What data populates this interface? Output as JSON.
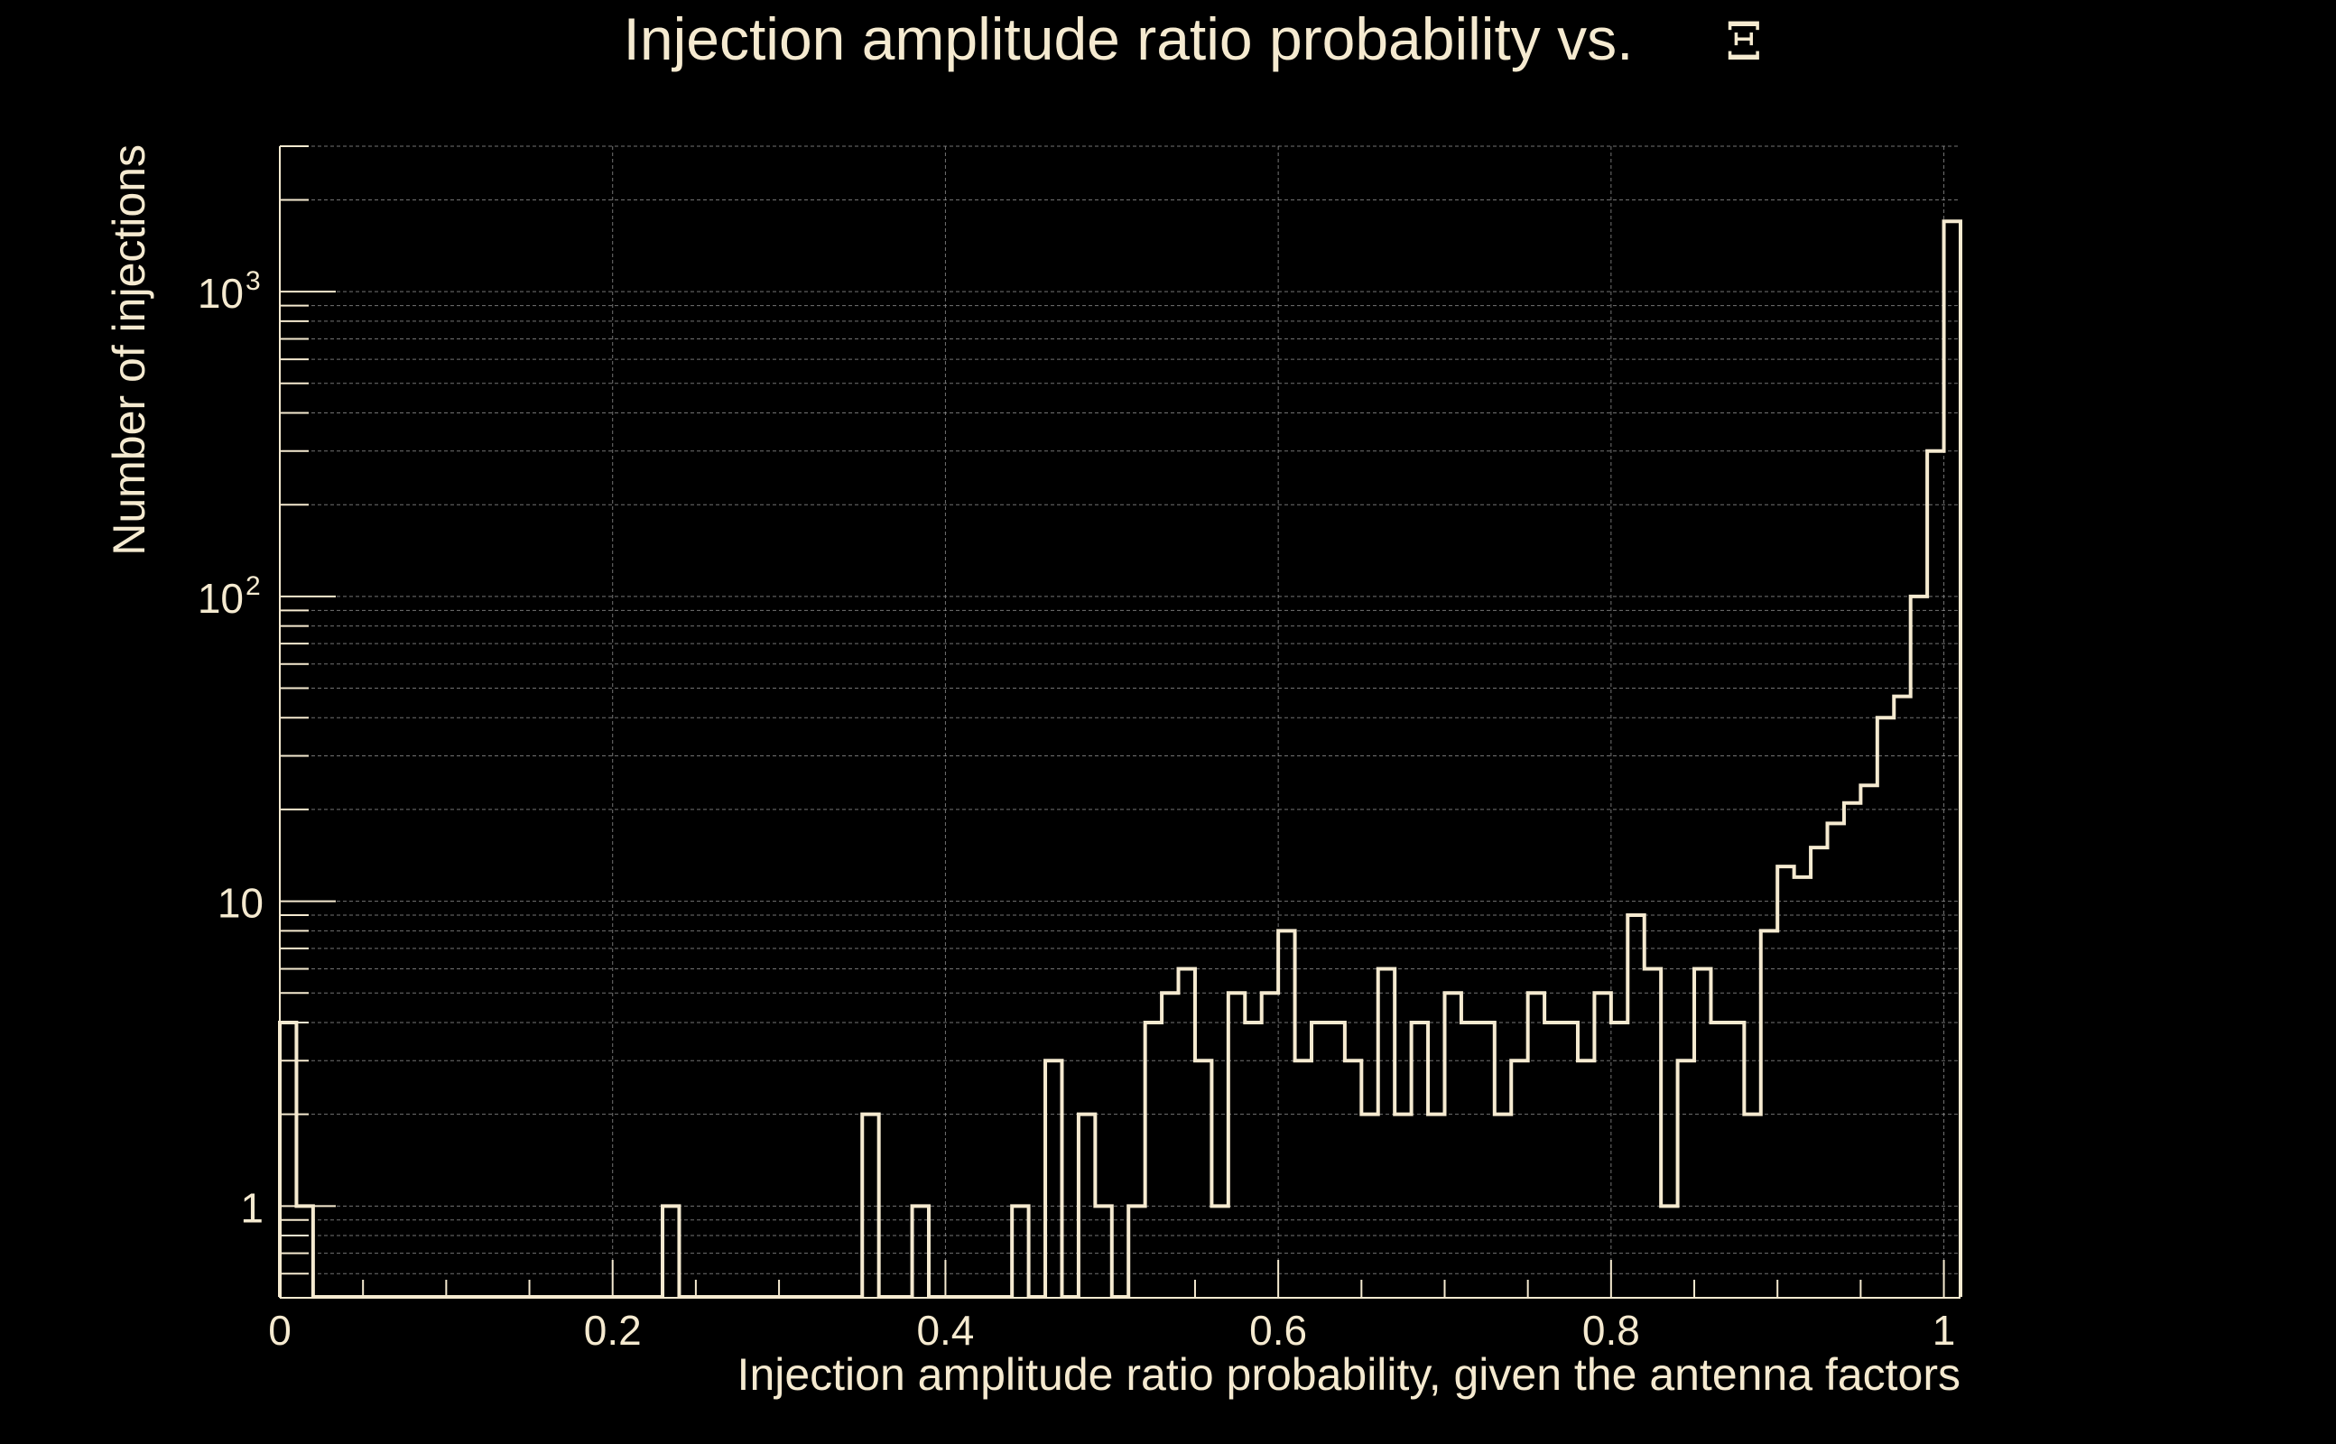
{
  "chart_data": {
    "type": "histogram",
    "title": "Injection amplitude ratio probability vs.",
    "title_symbol": "Ξ",
    "xlabel": "Injection amplitude ratio probability, given the antenna factors",
    "ylabel": "Number of injections",
    "xlim": [
      0,
      1.01
    ],
    "ylim": [
      0.5,
      3000
    ],
    "yscale": "log",
    "grid": true,
    "line_color": "#f5ead0",
    "background": "#000000",
    "x_ticks": [
      {
        "value": 0,
        "label": "0"
      },
      {
        "value": 0.2,
        "label": "0.2"
      },
      {
        "value": 0.4,
        "label": "0.4"
      },
      {
        "value": 0.6,
        "label": "0.6"
      },
      {
        "value": 0.8,
        "label": "0.8"
      },
      {
        "value": 1,
        "label": "1"
      }
    ],
    "y_ticks": [
      {
        "value": 1,
        "label": "1",
        "exp": ""
      },
      {
        "value": 10,
        "label": "10",
        "exp": ""
      },
      {
        "value": 100,
        "label": "10",
        "exp": "2"
      },
      {
        "value": 1000,
        "label": "10",
        "exp": "3"
      }
    ],
    "bin_width": 0.01,
    "bin_start": 0,
    "counts": [
      4,
      1,
      0,
      0,
      0,
      0,
      0,
      0,
      0,
      0,
      0,
      0,
      0,
      0,
      0,
      0,
      0,
      0,
      0,
      0,
      0,
      0,
      0,
      1,
      0,
      0,
      0,
      0,
      0,
      0,
      0,
      0,
      0,
      0,
      0,
      2,
      0,
      0,
      1,
      0,
      0,
      0,
      0,
      0,
      1,
      0,
      3,
      0,
      2,
      1,
      0,
      1,
      4,
      5,
      6,
      3,
      1,
      5,
      4,
      5,
      8,
      3,
      4,
      4,
      3,
      2,
      6,
      2,
      4,
      2,
      5,
      4,
      4,
      2,
      3,
      5,
      4,
      4,
      3,
      5,
      4,
      9,
      6,
      1,
      3,
      6,
      4,
      4,
      2,
      8,
      13,
      12,
      15,
      18,
      21,
      24,
      40,
      47,
      100,
      300,
      1700
    ]
  }
}
